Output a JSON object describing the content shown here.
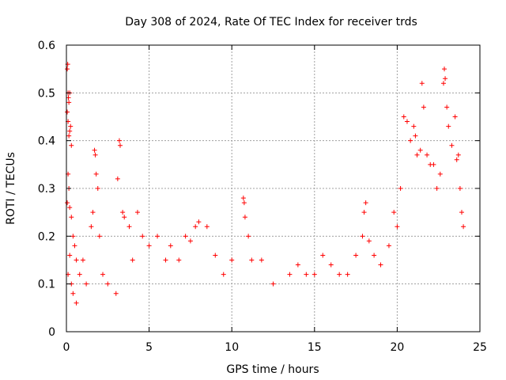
{
  "chart_data": {
    "type": "scatter",
    "title": "Day 308 of 2024, Rate Of TEC Index for receiver trds",
    "xlabel": "GPS time / hours",
    "ylabel": "ROTI / TECUs",
    "xlim": [
      0,
      25
    ],
    "ylim": [
      0,
      0.6
    ],
    "xticks": [
      0,
      5,
      10,
      15,
      20,
      25
    ],
    "yticks": [
      0,
      0.1,
      0.2,
      0.3,
      0.4,
      0.5,
      0.6
    ],
    "xtick_labels": [
      "0",
      "5",
      "10",
      "15",
      "20",
      "25"
    ],
    "ytick_labels": [
      "0",
      "0.1",
      "0.2",
      "0.3",
      "0.4",
      "0.5",
      "0.6"
    ],
    "grid": true,
    "marker": "+",
    "color": "#ff0000",
    "series": [
      {
        "points": [
          [
            0.05,
            0.55
          ],
          [
            0.08,
            0.56
          ],
          [
            0.1,
            0.5
          ],
          [
            0.12,
            0.49
          ],
          [
            0.15,
            0.48
          ],
          [
            0.2,
            0.5
          ],
          [
            0.05,
            0.46
          ],
          [
            0.1,
            0.44
          ],
          [
            0.2,
            0.42
          ],
          [
            0.25,
            0.43
          ],
          [
            0.3,
            0.39
          ],
          [
            0.15,
            0.41
          ],
          [
            0.1,
            0.33
          ],
          [
            0.15,
            0.3
          ],
          [
            0.05,
            0.27
          ],
          [
            0.2,
            0.26
          ],
          [
            0.3,
            0.24
          ],
          [
            0.4,
            0.2
          ],
          [
            0.5,
            0.18
          ],
          [
            0.6,
            0.15
          ],
          [
            0.2,
            0.16
          ],
          [
            0.1,
            0.12
          ],
          [
            0.3,
            0.1
          ],
          [
            0.4,
            0.08
          ],
          [
            0.6,
            0.06
          ],
          [
            0.8,
            0.12
          ],
          [
            1.0,
            0.15
          ],
          [
            1.2,
            0.1
          ],
          [
            1.5,
            0.22
          ],
          [
            1.6,
            0.25
          ],
          [
            1.7,
            0.38
          ],
          [
            1.75,
            0.37
          ],
          [
            1.8,
            0.33
          ],
          [
            1.9,
            0.3
          ],
          [
            2.0,
            0.2
          ],
          [
            2.2,
            0.12
          ],
          [
            2.5,
            0.1
          ],
          [
            3.0,
            0.08
          ],
          [
            3.2,
            0.4
          ],
          [
            3.25,
            0.39
          ],
          [
            3.1,
            0.32
          ],
          [
            3.4,
            0.25
          ],
          [
            3.5,
            0.24
          ],
          [
            3.8,
            0.22
          ],
          [
            4.0,
            0.15
          ],
          [
            4.3,
            0.25
          ],
          [
            4.6,
            0.2
          ],
          [
            5.0,
            0.18
          ],
          [
            5.5,
            0.2
          ],
          [
            6.0,
            0.15
          ],
          [
            6.3,
            0.18
          ],
          [
            6.8,
            0.15
          ],
          [
            7.2,
            0.2
          ],
          [
            7.5,
            0.19
          ],
          [
            7.8,
            0.22
          ],
          [
            8.0,
            0.23
          ],
          [
            8.5,
            0.22
          ],
          [
            9.0,
            0.16
          ],
          [
            9.5,
            0.12
          ],
          [
            10.0,
            0.15
          ],
          [
            10.7,
            0.28
          ],
          [
            10.75,
            0.27
          ],
          [
            10.8,
            0.24
          ],
          [
            11.0,
            0.2
          ],
          [
            11.2,
            0.15
          ],
          [
            11.8,
            0.15
          ],
          [
            12.5,
            0.1
          ],
          [
            13.5,
            0.12
          ],
          [
            14.0,
            0.14
          ],
          [
            14.5,
            0.12
          ],
          [
            15.0,
            0.12
          ],
          [
            15.5,
            0.16
          ],
          [
            16.0,
            0.14
          ],
          [
            16.5,
            0.12
          ],
          [
            17.0,
            0.12
          ],
          [
            17.5,
            0.16
          ],
          [
            17.9,
            0.2
          ],
          [
            18.0,
            0.25
          ],
          [
            18.1,
            0.27
          ],
          [
            18.3,
            0.19
          ],
          [
            18.6,
            0.16
          ],
          [
            19.0,
            0.14
          ],
          [
            19.5,
            0.18
          ],
          [
            19.8,
            0.25
          ],
          [
            20.0,
            0.22
          ],
          [
            20.2,
            0.3
          ],
          [
            20.4,
            0.45
          ],
          [
            20.6,
            0.44
          ],
          [
            20.8,
            0.4
          ],
          [
            21.0,
            0.43
          ],
          [
            21.1,
            0.41
          ],
          [
            21.2,
            0.37
          ],
          [
            21.4,
            0.38
          ],
          [
            21.5,
            0.52
          ],
          [
            21.6,
            0.47
          ],
          [
            21.8,
            0.37
          ],
          [
            22.0,
            0.35
          ],
          [
            22.2,
            0.35
          ],
          [
            22.4,
            0.3
          ],
          [
            22.6,
            0.33
          ],
          [
            22.8,
            0.52
          ],
          [
            22.85,
            0.55
          ],
          [
            22.9,
            0.53
          ],
          [
            23.0,
            0.47
          ],
          [
            23.1,
            0.43
          ],
          [
            23.3,
            0.39
          ],
          [
            23.5,
            0.45
          ],
          [
            23.6,
            0.36
          ],
          [
            23.7,
            0.37
          ],
          [
            23.8,
            0.3
          ],
          [
            23.9,
            0.25
          ],
          [
            24.0,
            0.22
          ]
        ]
      }
    ]
  }
}
